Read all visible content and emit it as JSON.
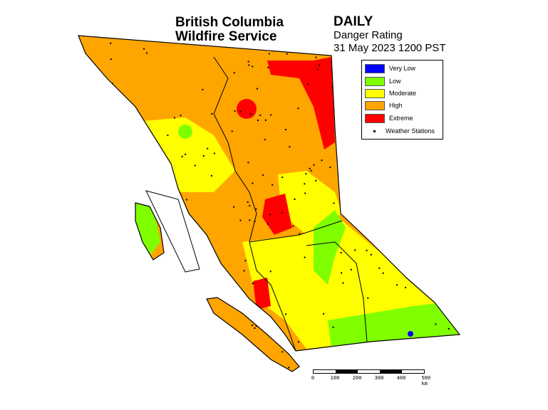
{
  "header": {
    "agency_line1": "British Columbia",
    "agency_line2": "Wildfire Service",
    "product": "DAILY",
    "subtitle": "Danger Rating",
    "datetime": "31 May 2023 1200 PST"
  },
  "legend": {
    "items": [
      {
        "label": "Very Low",
        "color": "#0000FF"
      },
      {
        "label": "Low",
        "color": "#80FF00"
      },
      {
        "label": "Moderate",
        "color": "#FFFF00"
      },
      {
        "label": "High",
        "color": "#FFA500"
      },
      {
        "label": "Extreme",
        "color": "#FF0000"
      }
    ],
    "stations_label": "Weather Stations"
  },
  "scale": {
    "ticks": [
      "0",
      "100",
      "200",
      "300",
      "400",
      "500 km"
    ]
  }
}
